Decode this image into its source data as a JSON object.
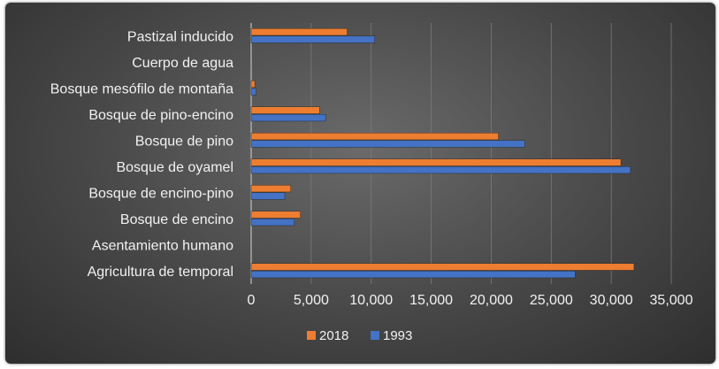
{
  "chart_data": {
    "type": "bar",
    "orientation": "horizontal",
    "title": "",
    "xlabel": "",
    "ylabel": "",
    "categories": [
      "Pastizal inducido",
      "Cuerpo de agua",
      "Bosque mesófilo de montaña",
      "Bosque de pino-encino",
      "Bosque de pino",
      "Bosque de oyamel",
      "Bosque de encino-pino",
      "Bosque de encino",
      "Asentamiento humano",
      "Agricultura de temporal"
    ],
    "series": [
      {
        "name": "2018",
        "color": "#ed7d31",
        "values": [
          8000,
          0,
          300,
          5700,
          20600,
          30800,
          3300,
          4100,
          0,
          31900
        ]
      },
      {
        "name": "1993",
        "color": "#4472c4",
        "values": [
          10300,
          0,
          400,
          6200,
          22800,
          31600,
          2800,
          3600,
          0,
          27000
        ]
      }
    ],
    "xlim": [
      0,
      35000
    ],
    "xticks": [
      0,
      5000,
      10000,
      15000,
      20000,
      25000,
      30000,
      35000
    ],
    "xtick_labels": [
      "0",
      "5,000",
      "10,000",
      "15,000",
      "20,000",
      "25,000",
      "30,000",
      "35,000"
    ],
    "grid": true,
    "legend_position": "bottom"
  }
}
